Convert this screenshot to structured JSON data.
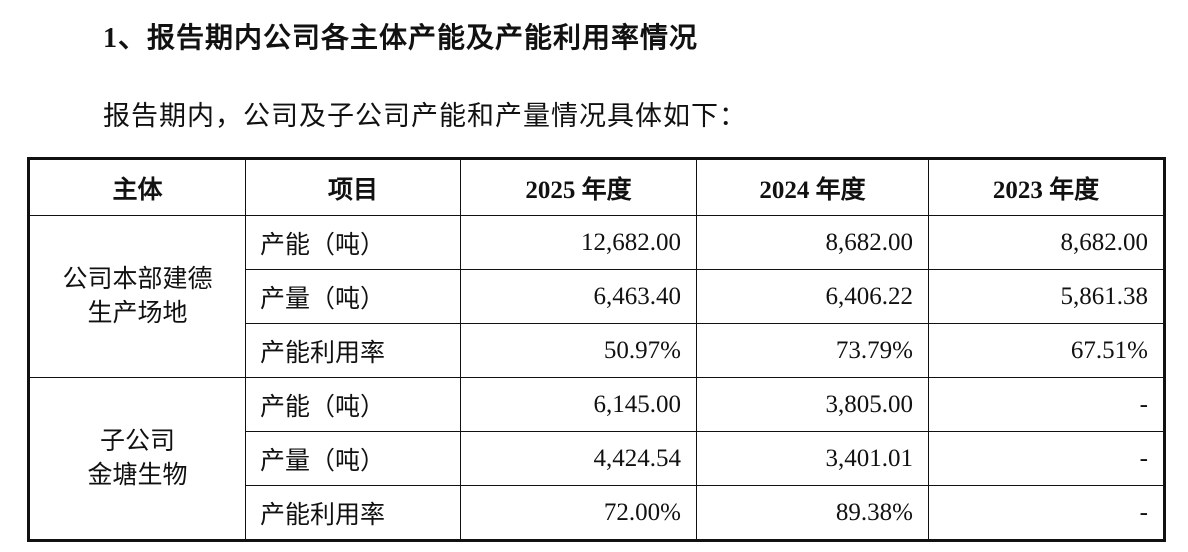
{
  "heading": "1、报告期内公司各主体产能及产能利用率情况",
  "intro": "报告期内，公司及子公司产能和产量情况具体如下：",
  "table": {
    "header": [
      "主体",
      "项目",
      "2025 年度",
      "2024 年度",
      "2023 年度"
    ],
    "groups": [
      {
        "entity": [
          "公司本部建德",
          "生产场地"
        ],
        "rows": [
          [
            "产能（吨）",
            "12,682.00",
            "8,682.00",
            "8,682.00"
          ],
          [
            "产量（吨）",
            "6,463.40",
            "6,406.22",
            "5,861.38"
          ],
          [
            "产能利用率",
            "50.97%",
            "73.79%",
            "67.51%"
          ]
        ]
      },
      {
        "entity": [
          "子公司",
          "金塘生物"
        ],
        "rows": [
          [
            "产能（吨）",
            "6,145.00",
            "3,805.00",
            "-"
          ],
          [
            "产量（吨）",
            "4,424.54",
            "3,401.01",
            "-"
          ],
          [
            "产能利用率",
            "72.00%",
            "89.38%",
            "-"
          ]
        ]
      }
    ]
  }
}
